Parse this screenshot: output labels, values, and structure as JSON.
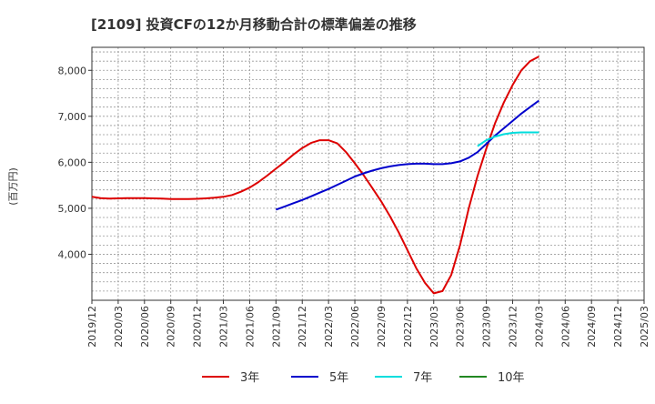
{
  "chart_data": {
    "type": "line",
    "title": "[2109]  投資CFの12か月移動合計の標準偏差の推移",
    "ylabel": "(百万円)",
    "xlabel": "",
    "ylim": [
      3000,
      8500
    ],
    "yticks": [
      4000,
      5000,
      6000,
      7000,
      8000
    ],
    "ytick_labels": [
      "4,000",
      "5,000",
      "6,000",
      "7,000",
      "8,000"
    ],
    "xticks": [
      "2019/12",
      "2020/03",
      "2020/06",
      "2020/09",
      "2020/12",
      "2021/03",
      "2021/06",
      "2021/09",
      "2021/12",
      "2022/03",
      "2022/06",
      "2022/09",
      "2022/12",
      "2023/03",
      "2023/06",
      "2023/09",
      "2023/12",
      "2024/03",
      "2024/06",
      "2024/09",
      "2024/12",
      "2025/03"
    ],
    "grid": true,
    "legend_position": "bottom",
    "series": [
      {
        "name": "3年",
        "color": "#dd0000",
        "x": [
          "2019/12",
          "2020/01",
          "2020/02",
          "2020/03",
          "2020/04",
          "2020/05",
          "2020/06",
          "2020/07",
          "2020/08",
          "2020/09",
          "2020/10",
          "2020/11",
          "2020/12",
          "2021/01",
          "2021/02",
          "2021/03",
          "2021/04",
          "2021/05",
          "2021/06",
          "2021/07",
          "2021/08",
          "2021/09",
          "2021/10",
          "2021/11",
          "2021/12",
          "2022/01",
          "2022/02",
          "2022/03",
          "2022/04",
          "2022/05",
          "2022/06",
          "2022/07",
          "2022/08",
          "2022/09",
          "2022/10",
          "2022/11",
          "2022/12",
          "2023/01",
          "2023/02",
          "2023/03",
          "2023/04",
          "2023/05",
          "2023/06",
          "2023/07",
          "2023/08",
          "2023/09",
          "2023/10",
          "2023/11",
          "2023/12",
          "2024/01",
          "2024/02",
          "2024/03"
        ],
        "values": [
          5250,
          5220,
          5210,
          5215,
          5220,
          5220,
          5220,
          5215,
          5210,
          5200,
          5200,
          5200,
          5205,
          5215,
          5230,
          5250,
          5290,
          5360,
          5450,
          5570,
          5710,
          5860,
          6010,
          6170,
          6310,
          6420,
          6480,
          6480,
          6410,
          6220,
          5980,
          5720,
          5440,
          5150,
          4830,
          4480,
          4090,
          3700,
          3380,
          3150,
          3200,
          3550,
          4200,
          5000,
          5700,
          6300,
          6850,
          7300,
          7680,
          8000,
          8200,
          8300
        ]
      },
      {
        "name": "5年",
        "color": "#0000cc",
        "x": [
          "2021/09",
          "2021/10",
          "2021/11",
          "2021/12",
          "2022/01",
          "2022/02",
          "2022/03",
          "2022/04",
          "2022/05",
          "2022/06",
          "2022/07",
          "2022/08",
          "2022/09",
          "2022/10",
          "2022/11",
          "2022/12",
          "2023/01",
          "2023/02",
          "2023/03",
          "2023/04",
          "2023/05",
          "2023/06",
          "2023/07",
          "2023/08",
          "2023/09",
          "2023/10",
          "2023/11",
          "2023/12",
          "2024/01",
          "2024/02",
          "2024/03"
        ],
        "values": [
          4970,
          5040,
          5110,
          5180,
          5260,
          5340,
          5420,
          5510,
          5600,
          5690,
          5760,
          5820,
          5870,
          5910,
          5940,
          5960,
          5970,
          5970,
          5960,
          5960,
          5980,
          6020,
          6100,
          6220,
          6400,
          6580,
          6740,
          6900,
          7060,
          7200,
          7340
        ]
      },
      {
        "name": "7年",
        "color": "#00dddd",
        "x": [
          "2023/08",
          "2023/09",
          "2023/10",
          "2023/11",
          "2023/12",
          "2024/01",
          "2024/02",
          "2024/03"
        ],
        "values": [
          6350,
          6480,
          6560,
          6610,
          6640,
          6650,
          6650,
          6650
        ]
      },
      {
        "name": "10年",
        "color": "#228822",
        "x": [],
        "values": []
      }
    ]
  }
}
